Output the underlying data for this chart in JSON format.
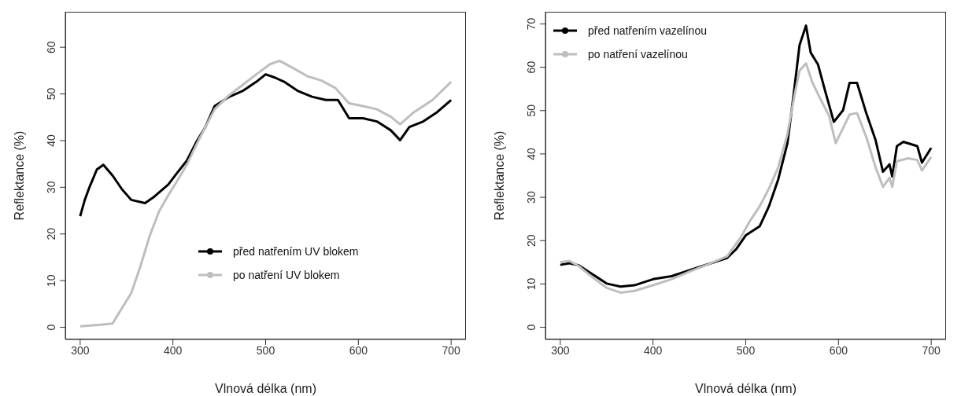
{
  "chart_data": [
    {
      "type": "line",
      "xlabel": "Vlnová délka (nm)",
      "ylabel": "Reflektance (%)",
      "xlim": [
        284,
        716
      ],
      "xticks": [
        300,
        400,
        500,
        600,
        700
      ],
      "ylim": [
        -2.6,
        67.6
      ],
      "yticks": [
        0,
        10,
        20,
        30,
        40,
        50,
        60
      ],
      "legend": "bottom",
      "grid": false,
      "series": [
        {
          "name": "před natřením UV blokem",
          "color": "#000000",
          "x": [
            300,
            305,
            310,
            318,
            325,
            335,
            345,
            355,
            370,
            380,
            395,
            405,
            415,
            425,
            435,
            445,
            460,
            475,
            490,
            500,
            510,
            520,
            535,
            550,
            565,
            578,
            590,
            605,
            620,
            635,
            645,
            655,
            670,
            685,
            700
          ],
          "values": [
            23.8,
            27.3,
            30,
            33.8,
            34.8,
            32.5,
            29.6,
            27.3,
            26.6,
            28,
            30.6,
            33.2,
            35.7,
            39.6,
            42.9,
            47.4,
            49.3,
            50.6,
            52.6,
            54.2,
            53.5,
            52.6,
            50.6,
            49.4,
            48.7,
            48.7,
            44.8,
            44.8,
            44.1,
            42.2,
            40.1,
            42.9,
            44.1,
            46.1,
            48.7
          ]
        },
        {
          "name": "po natření UV blokem",
          "color": "#bebebe",
          "x": [
            300,
            320,
            335,
            345,
            355,
            365,
            375,
            385,
            395,
            405,
            415,
            425,
            435,
            445,
            460,
            475,
            490,
            505,
            515,
            530,
            545,
            560,
            575,
            590,
            605,
            620,
            635,
            645,
            660,
            680,
            700
          ],
          "values": [
            0.2,
            0.5,
            0.8,
            4.1,
            7.3,
            13.1,
            19.6,
            24.8,
            28.3,
            31.5,
            34.8,
            39,
            42.9,
            46.7,
            49.6,
            51.9,
            54.2,
            56.4,
            57.1,
            55.5,
            53.8,
            52.9,
            51.3,
            48,
            47.4,
            46.7,
            45.1,
            43.5,
            46.1,
            48.7,
            52.6
          ]
        }
      ]
    },
    {
      "type": "line",
      "xlabel": "Vlnová délka (nm)",
      "ylabel": "Reflektance (%)",
      "xlim": [
        284,
        716
      ],
      "xticks": [
        300,
        400,
        500,
        600,
        700
      ],
      "ylim": [
        -2.8,
        72.8
      ],
      "yticks": [
        0,
        10,
        20,
        30,
        40,
        50,
        60,
        70
      ],
      "legend": "top left",
      "grid": false,
      "series": [
        {
          "name": "před natřením vazelínou",
          "color": "#000000",
          "x": [
            300,
            310,
            320,
            335,
            350,
            365,
            380,
            400,
            420,
            440,
            460,
            480,
            490,
            500,
            515,
            525,
            535,
            545,
            552,
            558,
            565,
            570,
            578,
            585,
            595,
            605,
            612,
            620,
            630,
            640,
            648,
            655,
            658,
            663,
            670,
            685,
            690,
            700
          ],
          "values": [
            14.4,
            14.8,
            14.3,
            12.2,
            10.1,
            9.4,
            9.7,
            11.1,
            11.8,
            13.2,
            14.6,
            16,
            18.1,
            21.2,
            23.3,
            27.9,
            34.1,
            42.5,
            54.3,
            65.1,
            69.6,
            63.4,
            60.6,
            55,
            47.4,
            50.1,
            56.4,
            56.4,
            49.4,
            43.2,
            35.9,
            37.6,
            34.8,
            41.8,
            42.8,
            41.8,
            38,
            41.4
          ]
        },
        {
          "name": "po natření vazelínou",
          "color": "#bebebe",
          "x": [
            300,
            310,
            320,
            335,
            350,
            365,
            380,
            400,
            420,
            440,
            460,
            480,
            495,
            505,
            515,
            525,
            535,
            545,
            552,
            558,
            565,
            572,
            580,
            590,
            597,
            605,
            612,
            620,
            630,
            640,
            648,
            655,
            658,
            663,
            675,
            685,
            690,
            700
          ],
          "values": [
            15,
            15.3,
            14.1,
            11.5,
            9.1,
            8,
            8.4,
            9.7,
            11.1,
            12.9,
            14.6,
            16.4,
            20.9,
            24.7,
            27.9,
            32,
            36.9,
            44.6,
            52.9,
            59.2,
            60.9,
            56.4,
            52.9,
            48.7,
            42.5,
            46,
            49.1,
            49.4,
            43.9,
            36.9,
            32.4,
            34.5,
            32.4,
            38.3,
            39,
            38.6,
            36.2,
            39.3
          ]
        }
      ]
    }
  ]
}
